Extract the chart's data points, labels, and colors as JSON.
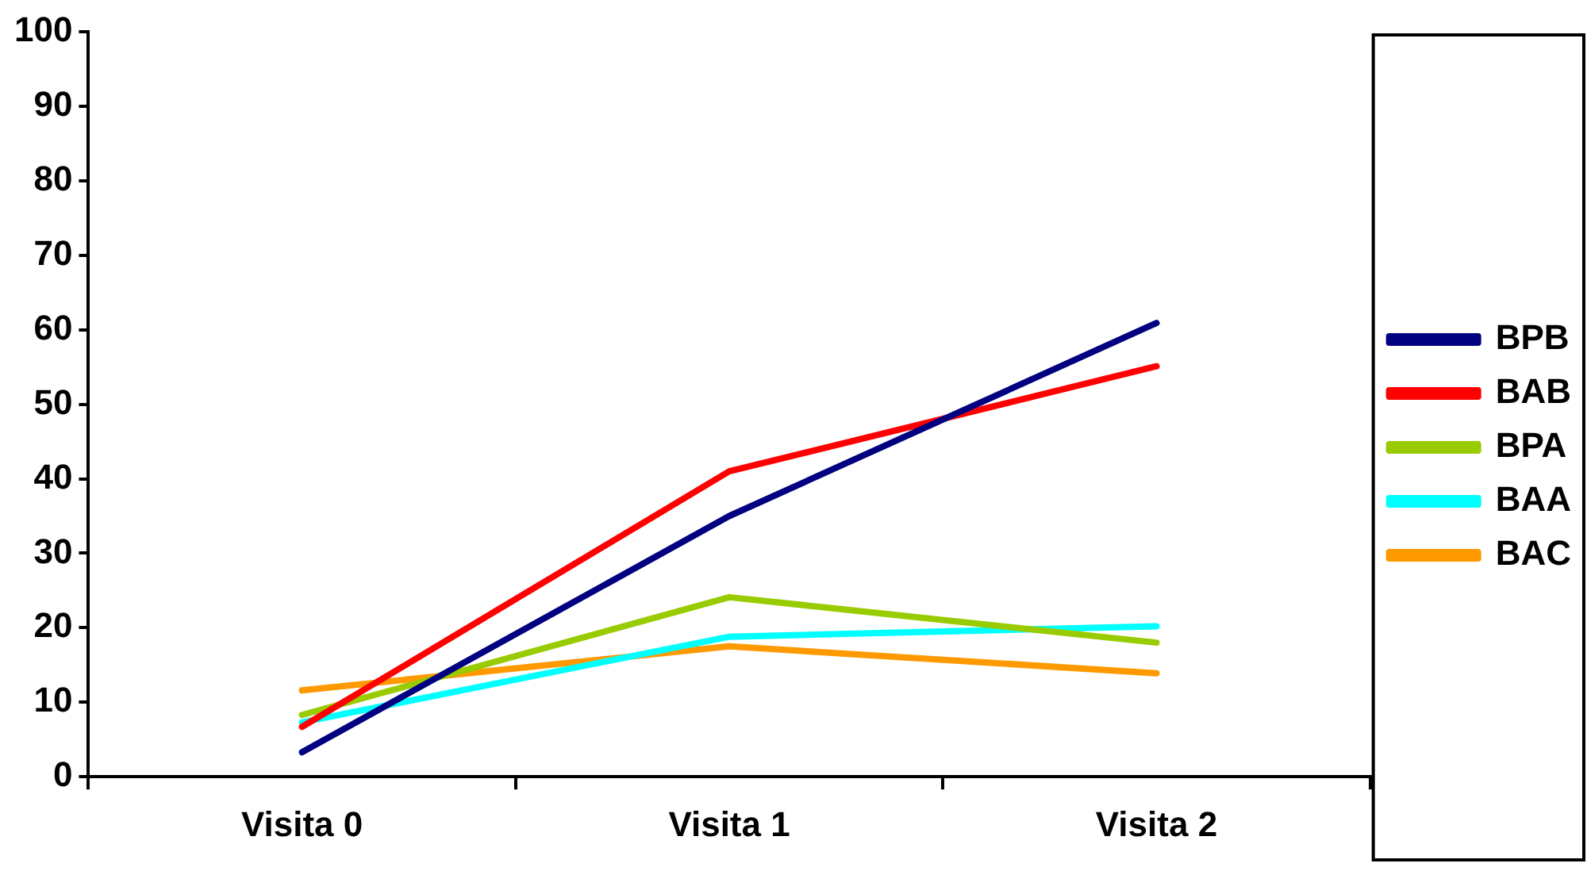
{
  "chart_data": {
    "type": "line",
    "categories": [
      "Visita 0",
      "Visita 1",
      "Visita 2"
    ],
    "series": [
      {
        "name": "BPB",
        "color": "#000080",
        "values": [
          3.3,
          35,
          60.9
        ]
      },
      {
        "name": "BAB",
        "color": "#ff0000",
        "values": [
          6.7,
          41,
          55.1
        ]
      },
      {
        "name": "BPA",
        "color": "#99cc00",
        "values": [
          8.3,
          24.1,
          18
        ]
      },
      {
        "name": "BAA",
        "color": "#00ffff",
        "values": [
          7.3,
          18.8,
          20.2
        ]
      },
      {
        "name": "BAC",
        "color": "#ff9900",
        "values": [
          11.6,
          17.5,
          13.9
        ]
      }
    ],
    "ylim": [
      0,
      100
    ],
    "yticks": [
      0,
      10,
      20,
      30,
      40,
      50,
      60,
      70,
      80,
      90,
      100
    ],
    "grid": false,
    "legend": "right",
    "marker": "none",
    "line_style": "solid"
  }
}
